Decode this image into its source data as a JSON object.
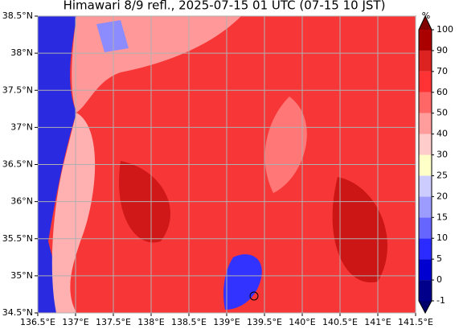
{
  "title": "Himawari 8/9 refl., 2025-07-15 01 UTC (07-15 10 JST)",
  "map": {
    "xlim": [
      136.5,
      141.5
    ],
    "ylim": [
      34.5,
      38.5
    ],
    "xticks": [
      {
        "value": 136.5,
        "label": "136.5°E"
      },
      {
        "value": 137,
        "label": "137°E"
      },
      {
        "value": 137.5,
        "label": "137.5°E"
      },
      {
        "value": 138,
        "label": "138°E"
      },
      {
        "value": 138.5,
        "label": "138.5°E"
      },
      {
        "value": 139,
        "label": "139°E"
      },
      {
        "value": 139.5,
        "label": "139.5°E"
      },
      {
        "value": 140,
        "label": "140°E"
      },
      {
        "value": 140.5,
        "label": "140.5°E"
      },
      {
        "value": 141,
        "label": "141°E"
      },
      {
        "value": 141.5,
        "label": "141.5°E"
      }
    ],
    "yticks": [
      {
        "value": 34.5,
        "label": "34.5°N"
      },
      {
        "value": 35,
        "label": "35°N"
      },
      {
        "value": 35.5,
        "label": "35.5°N"
      },
      {
        "value": 36,
        "label": "36°N"
      },
      {
        "value": 36.5,
        "label": "36.5°N"
      },
      {
        "value": 37,
        "label": "37°N"
      },
      {
        "value": 37.5,
        "label": "37.5°N"
      },
      {
        "value": 38,
        "label": "38°N"
      },
      {
        "value": 38.5,
        "label": "38.5°N"
      }
    ],
    "grid": true
  },
  "colorbar": {
    "label": "%",
    "ticks": [
      -1,
      0,
      5,
      10,
      15,
      20,
      25,
      30,
      40,
      50,
      60,
      70,
      90,
      100
    ],
    "colors": [
      "#00008b",
      "#0000d0",
      "#2b2bff",
      "#6666ff",
      "#9c9cff",
      "#ccccff",
      "#ffffc8",
      "#ffcccc",
      "#ff9c9c",
      "#ff6666",
      "#ff3333",
      "#dd2222",
      "#aa0000"
    ],
    "under": "#00006b",
    "over": "#800000"
  }
}
